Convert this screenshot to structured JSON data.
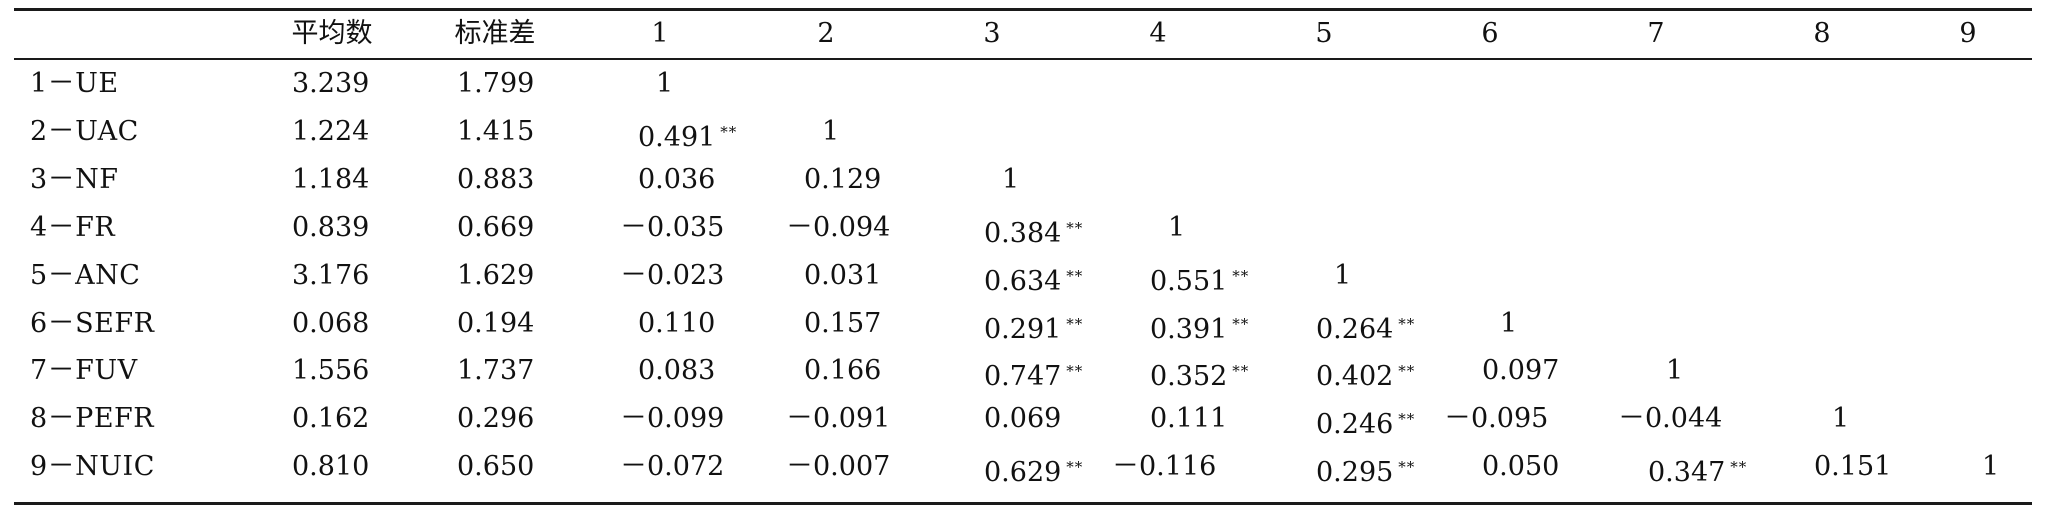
{
  "table": {
    "header": {
      "blank": "",
      "mean": "平均数",
      "sd": "标准差",
      "cols": [
        "1",
        "2",
        "3",
        "4",
        "5",
        "6",
        "7",
        "8",
        "9"
      ]
    },
    "rows": [
      {
        "label": "1－UE",
        "mean": "3.239",
        "sd": "1.799",
        "cells": [
          "1",
          "",
          "",
          "",
          "",
          "",
          "",
          "",
          ""
        ],
        "stars": [
          "",
          "",
          "",
          "",
          "",
          "",
          "",
          "",
          ""
        ]
      },
      {
        "label": "2－UAC",
        "mean": "1.224",
        "sd": "1.415",
        "cells": [
          "0.491",
          "1",
          "",
          "",
          "",
          "",
          "",
          "",
          ""
        ],
        "stars": [
          "**",
          "",
          "",
          "",
          "",
          "",
          "",
          "",
          ""
        ]
      },
      {
        "label": "3－NF",
        "mean": "1.184",
        "sd": "0.883",
        "cells": [
          "0.036",
          "0.129",
          "1",
          "",
          "",
          "",
          "",
          "",
          ""
        ],
        "stars": [
          "",
          "",
          "",
          "",
          "",
          "",
          "",
          "",
          ""
        ]
      },
      {
        "label": "4－FR",
        "mean": "0.839",
        "sd": "0.669",
        "cells": [
          "－0.035",
          "－0.094",
          "0.384",
          "1",
          "",
          "",
          "",
          "",
          ""
        ],
        "stars": [
          "",
          "",
          "**",
          "",
          "",
          "",
          "",
          "",
          ""
        ]
      },
      {
        "label": "5－ANC",
        "mean": "3.176",
        "sd": "1.629",
        "cells": [
          "－0.023",
          "0.031",
          "0.634",
          "0.551",
          "1",
          "",
          "",
          "",
          ""
        ],
        "stars": [
          "",
          "",
          "**",
          "**",
          "",
          "",
          "",
          "",
          ""
        ]
      },
      {
        "label": "6－SEFR",
        "mean": "0.068",
        "sd": "0.194",
        "cells": [
          "0.110",
          "0.157",
          "0.291",
          "0.391",
          "0.264",
          "1",
          "",
          "",
          ""
        ],
        "stars": [
          "",
          "",
          "**",
          "**",
          "**",
          "",
          "",
          "",
          ""
        ]
      },
      {
        "label": "7－FUV",
        "mean": "1.556",
        "sd": "1.737",
        "cells": [
          "0.083",
          "0.166",
          "0.747",
          "0.352",
          "0.402",
          "0.097",
          "1",
          "",
          ""
        ],
        "stars": [
          "",
          "",
          "**",
          "**",
          "**",
          "",
          "",
          "",
          ""
        ]
      },
      {
        "label": "8－PEFR",
        "mean": "0.162",
        "sd": "0.296",
        "cells": [
          "－0.099",
          "－0.091",
          "0.069",
          "0.111",
          "0.246",
          "－0.095",
          "－0.044",
          "1",
          ""
        ],
        "stars": [
          "",
          "",
          "",
          "",
          "**",
          "",
          "",
          "",
          ""
        ]
      },
      {
        "label": "9－NUIC",
        "mean": "0.810",
        "sd": "0.650",
        "cells": [
          "－0.072",
          "－0.007",
          "0.629",
          "－0.116",
          "0.295",
          "0.050",
          "0.347",
          "0.151",
          "1"
        ],
        "stars": [
          "",
          "",
          "**",
          "",
          "**",
          "",
          "**",
          "",
          ""
        ]
      }
    ]
  }
}
